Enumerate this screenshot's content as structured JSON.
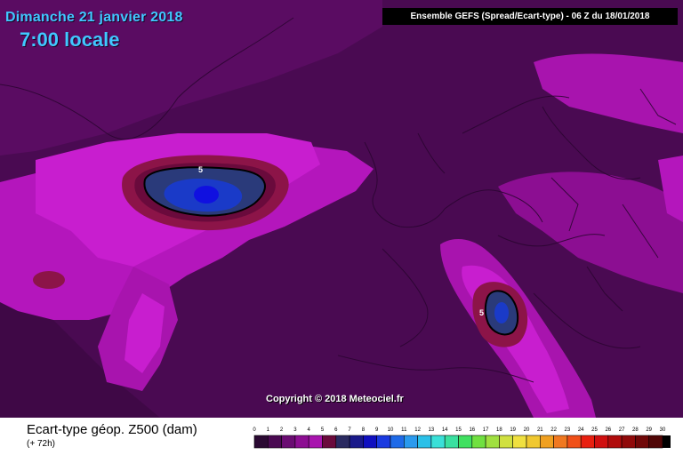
{
  "header": {
    "date": "Dimanche 21 janvier 2018",
    "time": "7:00 locale",
    "model_info": "Ensemble GEFS  (Spread/Ecart-type) - 06 Z du 18/01/2018"
  },
  "map": {
    "copyright": "Copyright © 2018 Meteociel.fr",
    "contour_labels": [
      "5",
      "5"
    ],
    "colors": {
      "background": "#4a0a52",
      "band_dark": "#5c0c66",
      "band_mid": "#a814ae",
      "band_bright": "#c81ecf",
      "band_red": "#8c1448",
      "band_navy": "#2a3a7a",
      "band_blue": "#1a3ac8",
      "band_core": "#1010e0"
    }
  },
  "footer": {
    "parameter": "Ecart-type géop. Z500 (dam)",
    "lead_time": "(+ 72h)"
  },
  "legend": {
    "ticks": [
      "0",
      "1",
      "2",
      "3",
      "4",
      "5",
      "6",
      "7",
      "8",
      "9",
      "10",
      "11",
      "12",
      "13",
      "14",
      "15",
      "16",
      "17",
      "18",
      "19",
      "20",
      "21",
      "22",
      "23",
      "24",
      "25",
      "26",
      "27",
      "28",
      "29",
      "30"
    ],
    "colors": [
      "#2b0a33",
      "#4a0a52",
      "#6a0c72",
      "#8c0e92",
      "#a814ae",
      "#6a0a3c",
      "#2a2a60",
      "#1a1a8a",
      "#1010c0",
      "#1a3ae0",
      "#1e6ae8",
      "#2a9aee",
      "#2ac0e8",
      "#3ae0d8",
      "#3ae0a0",
      "#40e060",
      "#70e040",
      "#a0e040",
      "#d0e040",
      "#f0e040",
      "#f0c830",
      "#f0a020",
      "#f07820",
      "#f05018",
      "#e82010",
      "#d01010",
      "#b00c0c",
      "#900a0a",
      "#700808",
      "#500606",
      "#000000"
    ]
  }
}
